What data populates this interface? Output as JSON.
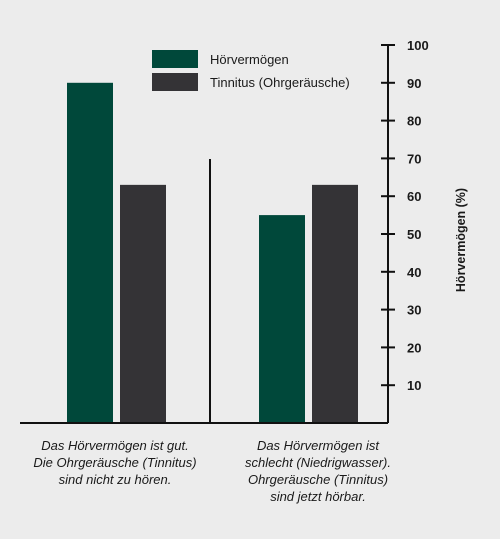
{
  "chart_data": {
    "type": "bar",
    "categories": [
      "Das Hörvermögen ist gut. Die Ohrgeräusche (Tinnitus) sind nicht zu hören.",
      "Das Hörvermögen ist schlecht (Niedrigwasser). Ohrgeräusche (Tinnitus) sind jetzt hörbar."
    ],
    "category_lines": [
      [
        "Das Hörvermögen ist gut.",
        "Die Ohrgeräusche (Tinnitus)",
        "sind nicht zu hören."
      ],
      [
        "Das Hörvermögen ist",
        "schlecht (Niedrigwasser).",
        "Ohrgeräusche (Tinnitus)",
        "sind jetzt hörbar."
      ]
    ],
    "series": [
      {
        "name": "Hörvermögen",
        "values": [
          90,
          55
        ],
        "color": "#00483a"
      },
      {
        "name": "Tinnitus (Ohrgeräusche)",
        "values": [
          63,
          63
        ],
        "color": "#343336"
      }
    ],
    "ylabel": "Hörvermögen (%)",
    "ylim": [
      0,
      100
    ],
    "yticks": [
      10,
      20,
      30,
      40,
      50,
      60,
      70,
      80,
      90,
      100
    ],
    "y_axis_side": "right",
    "legend_position": "top-center",
    "grid": false
  }
}
